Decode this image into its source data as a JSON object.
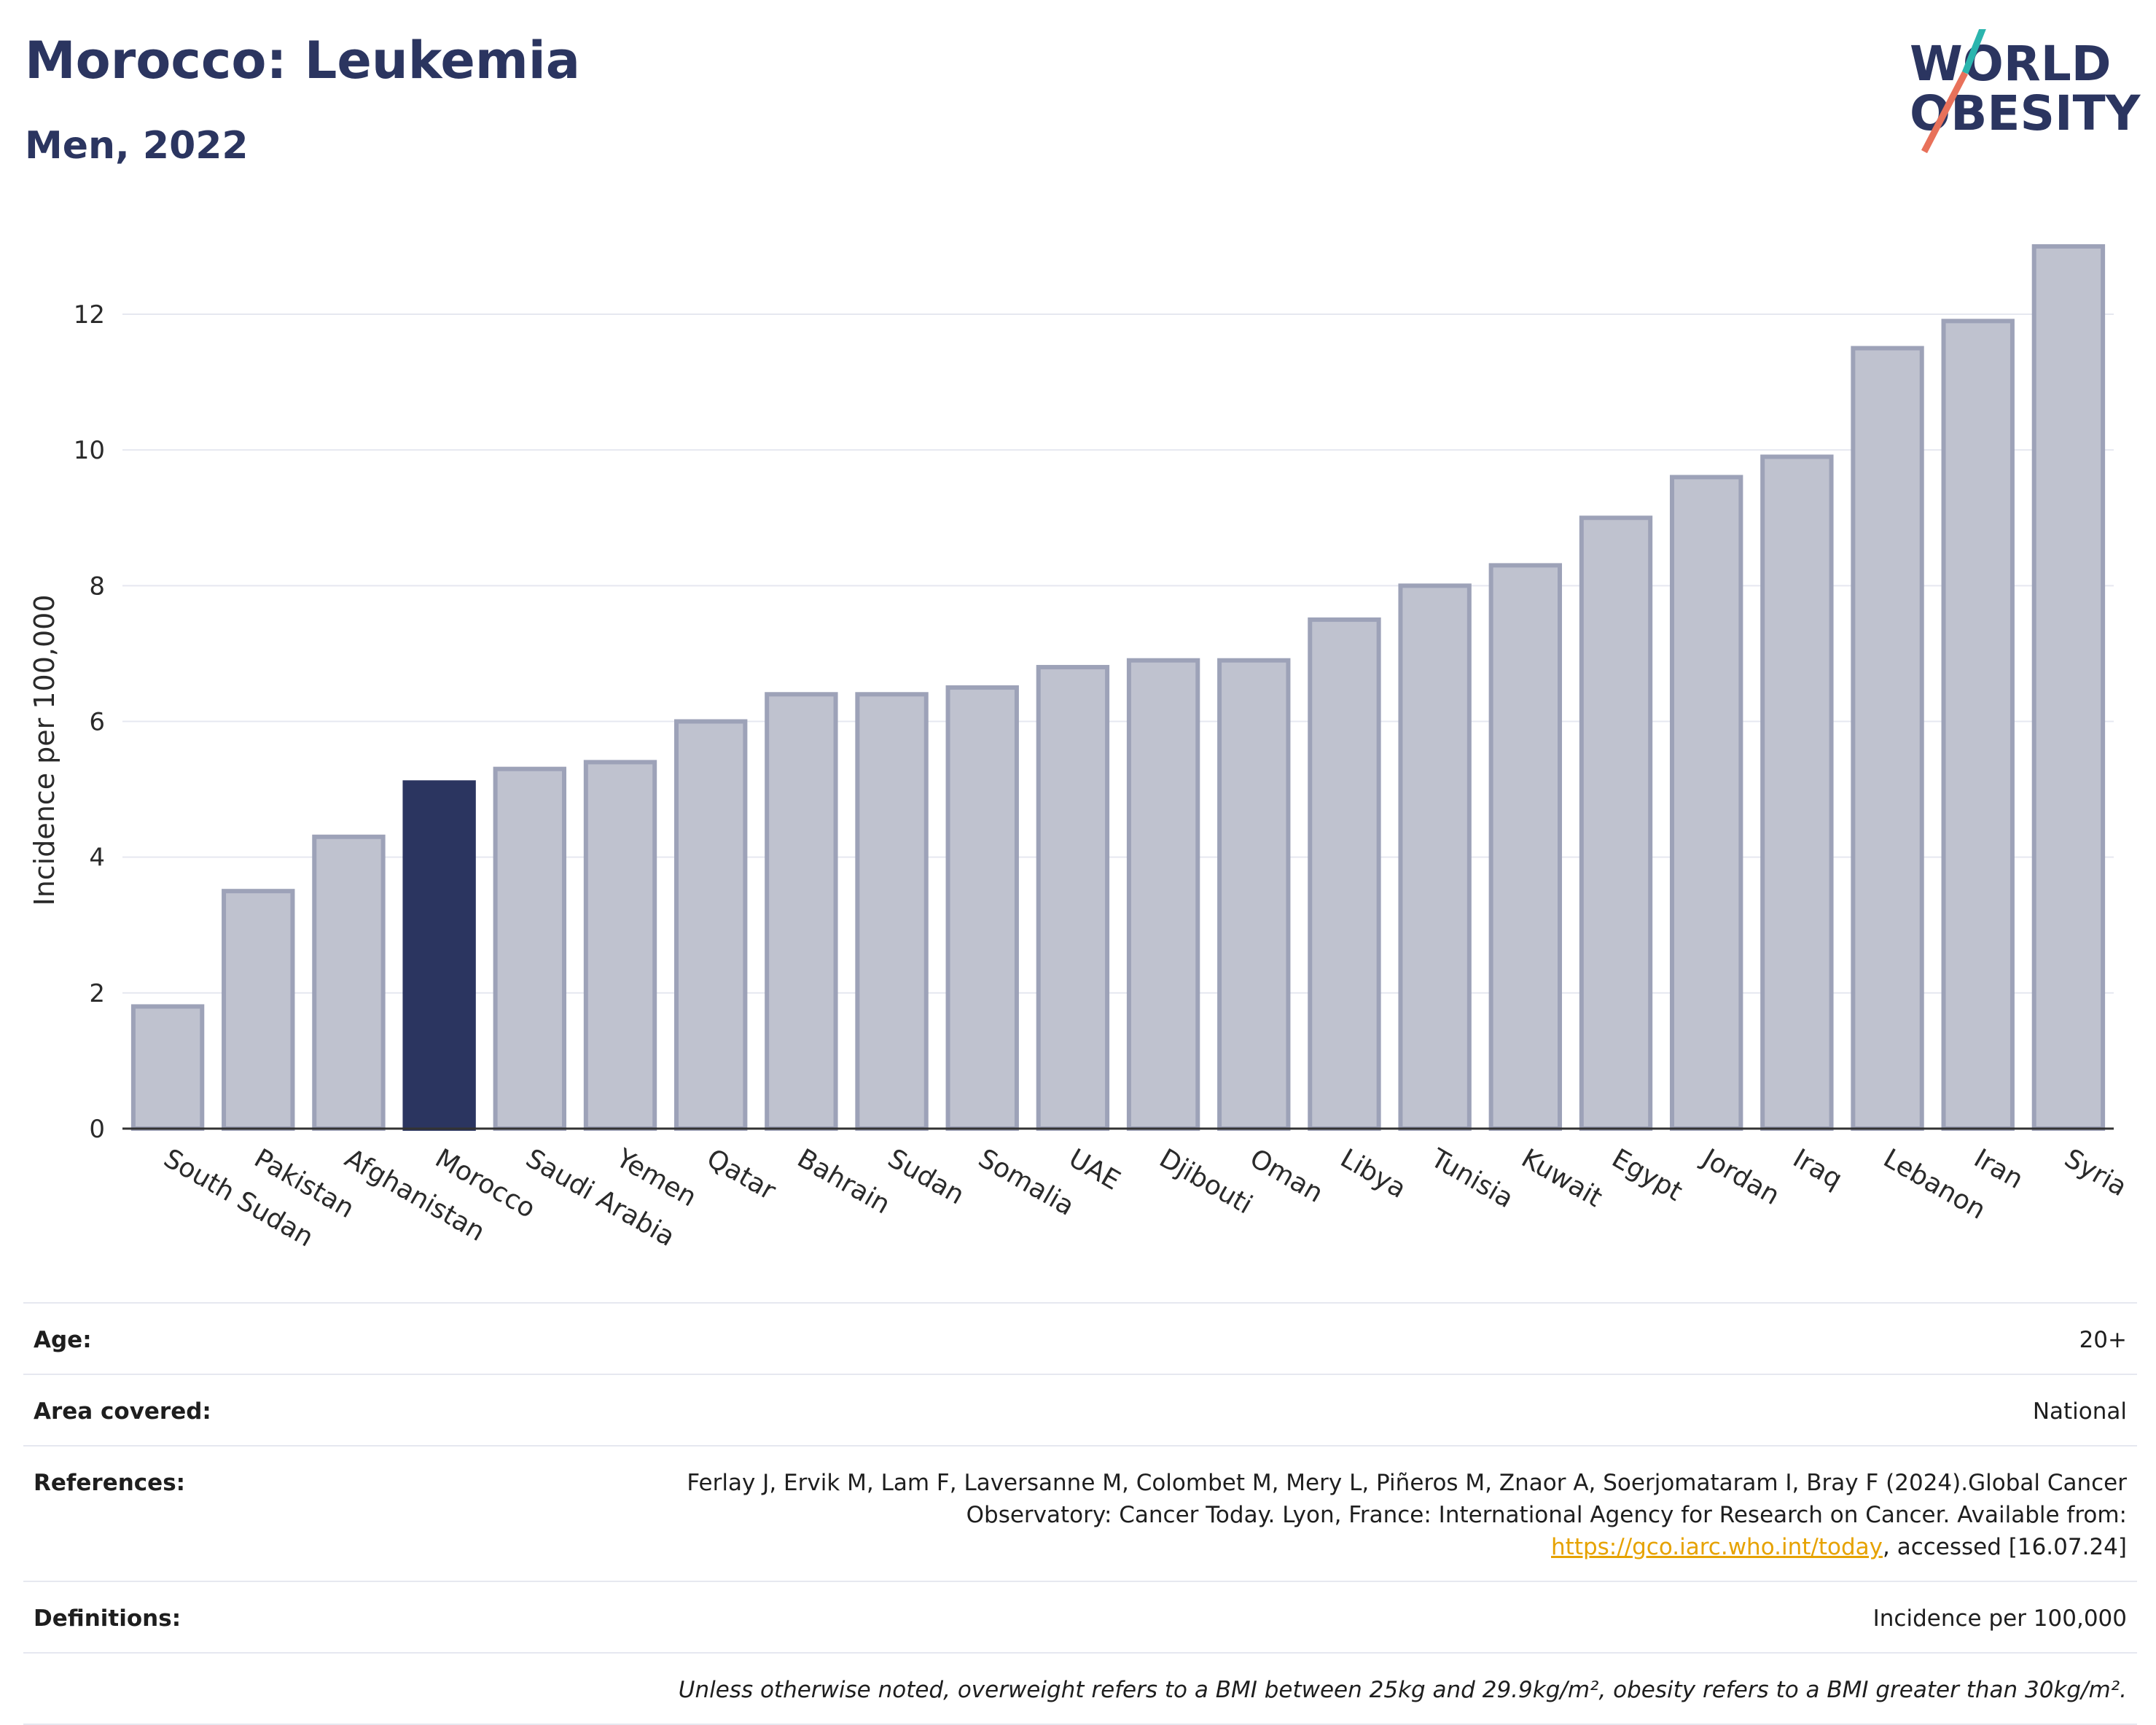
{
  "header": {
    "title": "Morocco: Leukemia",
    "subtitle": "Men, 2022"
  },
  "logo": {
    "line1": "WORLD",
    "line2": "OBESITY"
  },
  "colors": {
    "highlight": "#2b3560",
    "bar_fill": "#bfc2cf",
    "bar_stroke": "#9da2b8",
    "grid": "#e6e8f0",
    "logo_teal": "#2bb5ae",
    "logo_coral": "#e8715a"
  },
  "chart_data": {
    "type": "bar",
    "ylabel": "Incidence per 100,000",
    "xlabel": "",
    "ylim": [
      0,
      13.3
    ],
    "yticks": [
      0,
      2,
      4,
      6,
      8,
      10,
      12
    ],
    "grid": true,
    "highlight": "Morocco",
    "categories": [
      "South Sudan",
      "Pakistan",
      "Afghanistan",
      "Morocco",
      "Saudi Arabia",
      "Yemen",
      "Qatar",
      "Bahrain",
      "Sudan",
      "Somalia",
      "UAE",
      "Djibouti",
      "Oman",
      "Libya",
      "Tunisia",
      "Kuwait",
      "Egypt",
      "Jordan",
      "Iraq",
      "Lebanon",
      "Iran",
      "Syria"
    ],
    "values": [
      1.8,
      3.5,
      4.3,
      5.1,
      5.3,
      5.4,
      6.0,
      6.4,
      6.4,
      6.5,
      6.8,
      6.9,
      6.9,
      7.5,
      8.0,
      8.3,
      9.0,
      9.6,
      9.9,
      11.5,
      11.9,
      13.0
    ]
  },
  "info": {
    "age_label": "Age:",
    "age_value": "20+",
    "area_label": "Area covered:",
    "area_value": "National",
    "references_label": "References:",
    "references_text_1": "Ferlay J, Ervik M, Lam F, Laversanne M, Colombet M, Mery L, Piñeros M, Znaor A, Soerjomataram I, Bray F (2024).Global Cancer Observatory: Cancer Today. Lyon, France: International Agency for Research on Cancer. Available from: ",
    "references_link": "https://gco.iarc.who.int/today",
    "references_text_2": ", accessed [16.07.24]",
    "definitions_label": "Definitions:",
    "definitions_value": "Incidence per 100,000",
    "note": "Unless otherwise noted, overweight refers to a BMI between 25kg and 29.9kg/m², obesity refers to a BMI greater than 30kg/m²."
  }
}
